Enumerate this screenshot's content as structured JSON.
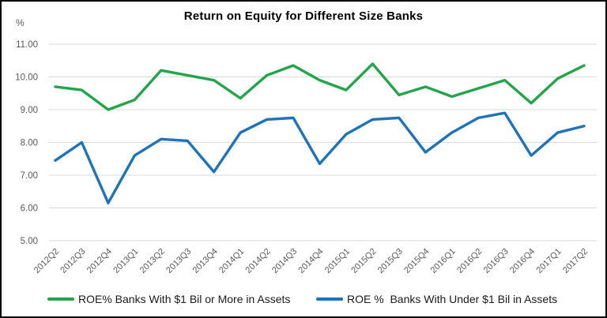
{
  "chart": {
    "title": "Return on Equity for Different Size Banks",
    "y_unit_label": "%"
  },
  "chart_data": {
    "type": "line",
    "title": "Return on Equity for Different Size Banks",
    "y_axis_unit": "%",
    "categories": [
      "2012Q2",
      "2012Q3",
      "2012Q4",
      "2013Q1",
      "2013Q2",
      "2013Q3",
      "2013Q4",
      "2014Q1",
      "2014Q2",
      "2014Q3",
      "2014Q4",
      "2015Q1",
      "2015Q2",
      "2015Q3",
      "2015Q4",
      "2016Q1",
      "2016Q2",
      "2016Q3",
      "2016Q4",
      "2017Q1",
      "2017Q2"
    ],
    "series": [
      {
        "name": "ROE% Banks With $1 Bil or More in Assets",
        "color": "#23A54B",
        "values": [
          9.7,
          9.6,
          9.0,
          9.3,
          10.2,
          10.05,
          9.9,
          9.35,
          10.05,
          10.35,
          9.9,
          9.6,
          10.4,
          9.45,
          9.7,
          9.4,
          9.65,
          9.9,
          9.2,
          9.95,
          10.35
        ]
      },
      {
        "name": "ROE %  Banks With Under $1 Bil in Assets",
        "color": "#1F73B8",
        "values": [
          7.45,
          8.0,
          6.15,
          7.6,
          8.1,
          8.05,
          7.1,
          8.3,
          8.7,
          8.75,
          7.35,
          8.25,
          8.7,
          8.75,
          7.7,
          8.3,
          8.75,
          8.9,
          7.6,
          8.3,
          8.5
        ]
      }
    ],
    "y_ticks": [
      "11.00",
      "10.00",
      "9.00",
      "8.00",
      "7.00",
      "6.00",
      "5.00"
    ],
    "ylim": [
      5,
      11
    ],
    "grid": true,
    "legend_position": "bottom",
    "grid_color": "#D9D9D9",
    "axis_text_color": "#595959"
  }
}
